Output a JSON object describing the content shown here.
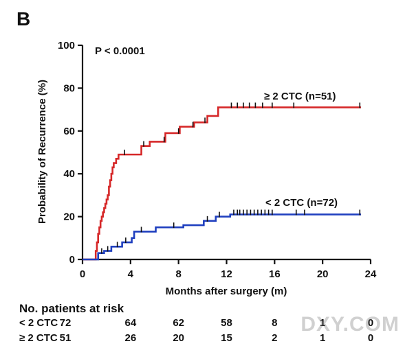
{
  "panel_label": "B",
  "chart_data": {
    "type": "line",
    "subtype": "kaplan-meier step curve",
    "annotation": "P < 0.0001",
    "xlabel": "Months after surgery (m)",
    "ylabel": "Probability of Recurrence (%)",
    "xlim": [
      0,
      24
    ],
    "ylim": [
      0,
      100
    ],
    "xticks": [
      0,
      4,
      8,
      12,
      16,
      20,
      24
    ],
    "yticks": [
      0,
      20,
      40,
      60,
      80,
      100
    ],
    "grid": false,
    "series": [
      {
        "name": "≥ 2 CTC (n=51)",
        "color": "#d62728",
        "steps": [
          [
            0,
            0
          ],
          [
            1.0,
            0
          ],
          [
            1.1,
            4
          ],
          [
            1.2,
            8
          ],
          [
            1.3,
            12
          ],
          [
            1.4,
            15
          ],
          [
            1.5,
            18
          ],
          [
            1.6,
            20
          ],
          [
            1.7,
            22
          ],
          [
            1.8,
            24
          ],
          [
            1.9,
            26
          ],
          [
            2.0,
            28
          ],
          [
            2.1,
            30
          ],
          [
            2.2,
            34
          ],
          [
            2.3,
            37
          ],
          [
            2.4,
            40
          ],
          [
            2.5,
            43
          ],
          [
            2.6,
            45
          ],
          [
            2.8,
            47
          ],
          [
            3.0,
            49
          ],
          [
            4.9,
            53
          ],
          [
            5.6,
            55
          ],
          [
            6.9,
            59
          ],
          [
            8.1,
            62
          ],
          [
            9.3,
            64
          ],
          [
            10.4,
            67
          ],
          [
            11.3,
            71
          ],
          [
            23.2,
            71
          ]
        ],
        "censor_x": [
          3.5,
          5.1,
          6.8,
          8.0,
          9.2,
          10.2,
          12.4,
          12.9,
          13.4,
          13.9,
          14.4,
          15.0,
          15.8,
          17.6,
          23.1
        ]
      },
      {
        "name": "< 2 CTC (n=72)",
        "color": "#1f3fbf",
        "steps": [
          [
            0,
            0
          ],
          [
            1.1,
            0
          ],
          [
            1.3,
            3
          ],
          [
            1.8,
            4
          ],
          [
            2.4,
            6
          ],
          [
            3.3,
            8
          ],
          [
            4.1,
            10
          ],
          [
            4.3,
            13
          ],
          [
            6.1,
            15
          ],
          [
            8.4,
            16
          ],
          [
            10.1,
            18
          ],
          [
            11.1,
            20
          ],
          [
            12.3,
            21
          ],
          [
            23.2,
            21
          ]
        ],
        "censor_x": [
          1.6,
          2.1,
          2.9,
          3.6,
          4.9,
          7.6,
          10.4,
          11.4,
          12.6,
          12.9,
          13.1,
          13.4,
          13.7,
          14.0,
          14.3,
          14.6,
          14.9,
          15.2,
          15.5,
          15.8,
          17.8,
          18.5,
          23.1
        ]
      }
    ]
  },
  "risk_table": {
    "title": "No. patients at risk",
    "columns_x": [
      0,
      4,
      8,
      12,
      16,
      20,
      24
    ],
    "rows": [
      {
        "label": "< 2 CTC",
        "values": [
          "72",
          "64",
          "62",
          "58",
          "8",
          "1",
          "0"
        ]
      },
      {
        "label": "≥ 2 CTC",
        "values": [
          "51",
          "26",
          "20",
          "15",
          "2",
          "1",
          "0"
        ]
      }
    ]
  },
  "watermark": "DXY.COM"
}
